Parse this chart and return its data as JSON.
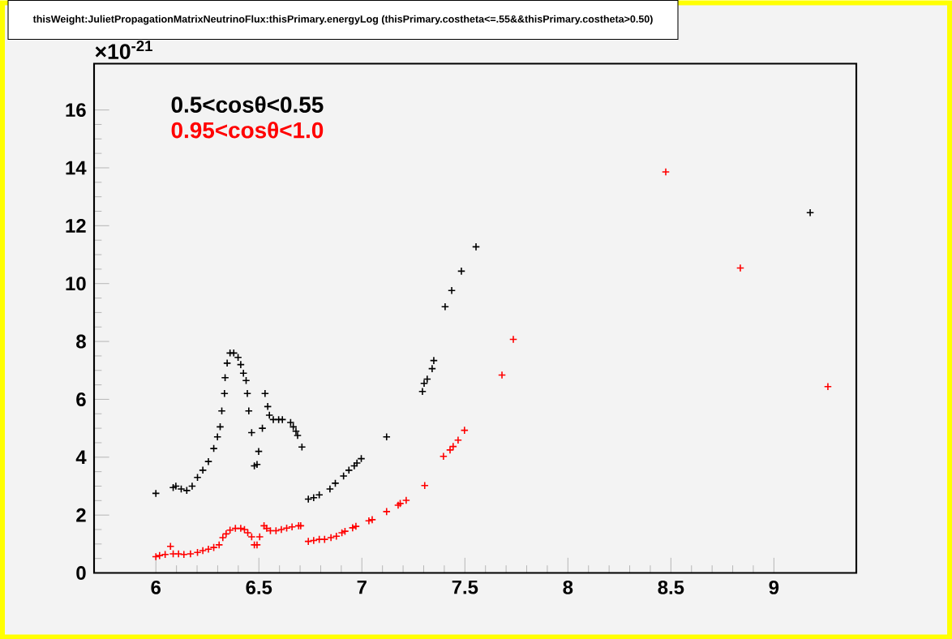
{
  "chart_data": {
    "type": "scatter",
    "title": "thisWeight:JulietPropagationMatrixNeutrinoFlux:thisPrimary.energyLog (thisPrimary.costheta<=.55&&thisPrimary.costheta>0.50)",
    "annotations": [
      "×10$^{-21}$"
    ],
    "xlim": [
      5.7,
      9.4
    ],
    "ylim": [
      0,
      17.6
    ],
    "xticks": [
      6,
      6.5,
      7,
      7.5,
      8,
      8.5,
      9
    ],
    "yticks": [
      0,
      2,
      4,
      6,
      8,
      10,
      12,
      14,
      16
    ],
    "grid": false,
    "legend": "top left",
    "marker": "cross",
    "series": [
      {
        "name": "0.5<cosθ<0.55",
        "color": "#000000",
        "x": [
          6.0,
          6.084,
          6.097,
          6.123,
          6.15,
          6.176,
          6.202,
          6.228,
          6.255,
          6.281,
          6.299,
          6.312,
          6.32,
          6.333,
          6.336,
          6.346,
          6.36,
          6.378,
          6.399,
          6.412,
          6.425,
          6.438,
          6.444,
          6.451,
          6.465,
          6.478,
          6.491,
          6.499,
          6.517,
          6.53,
          6.543,
          6.551,
          6.57,
          6.596,
          6.614,
          6.654,
          6.667,
          6.68,
          6.688,
          6.709,
          6.74,
          6.766,
          6.793,
          6.845,
          6.871,
          6.911,
          6.937,
          6.963,
          6.976,
          6.997,
          7.12,
          7.294,
          7.302,
          7.317,
          7.341,
          7.349,
          7.404,
          7.436,
          7.483,
          7.554,
          9.176
        ],
        "values": [
          2.75,
          2.95,
          3.0,
          2.9,
          2.85,
          3.0,
          3.3,
          3.55,
          3.85,
          4.3,
          4.7,
          5.05,
          5.6,
          6.2,
          6.75,
          7.25,
          7.6,
          7.6,
          7.45,
          7.2,
          6.9,
          6.65,
          6.2,
          5.6,
          4.85,
          3.7,
          3.75,
          4.2,
          5.0,
          6.2,
          5.75,
          5.45,
          5.3,
          5.3,
          5.3,
          5.2,
          5.05,
          4.9,
          4.75,
          4.35,
          2.55,
          2.6,
          2.7,
          2.9,
          3.1,
          3.35,
          3.55,
          3.7,
          3.8,
          3.95,
          4.7,
          6.27,
          6.55,
          6.7,
          7.06,
          7.34,
          9.2,
          9.76,
          10.43,
          11.27,
          12.45
        ]
      },
      {
        "name": "0.95<cosθ<1.0",
        "color": "#ff0000",
        "x": [
          6.0,
          6.018,
          6.045,
          6.071,
          6.084,
          6.11,
          6.136,
          6.168,
          6.202,
          6.228,
          6.255,
          6.281,
          6.307,
          6.325,
          6.341,
          6.36,
          6.386,
          6.412,
          6.43,
          6.446,
          6.465,
          6.478,
          6.491,
          6.504,
          6.525,
          6.538,
          6.556,
          6.583,
          6.609,
          6.635,
          6.661,
          6.693,
          6.703,
          6.74,
          6.766,
          6.793,
          6.819,
          6.85,
          6.876,
          6.903,
          6.918,
          6.955,
          6.971,
          7.034,
          7.05,
          7.12,
          7.176,
          7.186,
          7.215,
          7.305,
          7.396,
          7.428,
          7.443,
          7.467,
          7.498,
          7.68,
          7.735,
          8.475,
          8.837,
          9.262
        ],
        "values": [
          0.56,
          0.6,
          0.64,
          0.92,
          0.66,
          0.66,
          0.64,
          0.66,
          0.71,
          0.77,
          0.82,
          0.88,
          0.97,
          1.22,
          1.35,
          1.48,
          1.54,
          1.54,
          1.5,
          1.39,
          1.25,
          0.97,
          0.97,
          1.25,
          1.63,
          1.54,
          1.46,
          1.46,
          1.5,
          1.55,
          1.59,
          1.63,
          1.63,
          1.09,
          1.12,
          1.16,
          1.16,
          1.22,
          1.27,
          1.39,
          1.44,
          1.56,
          1.61,
          1.8,
          1.84,
          2.12,
          2.34,
          2.4,
          2.51,
          3.02,
          4.03,
          4.25,
          4.37,
          4.59,
          4.93,
          6.84,
          8.07,
          13.86,
          10.54,
          6.44
        ]
      }
    ]
  }
}
